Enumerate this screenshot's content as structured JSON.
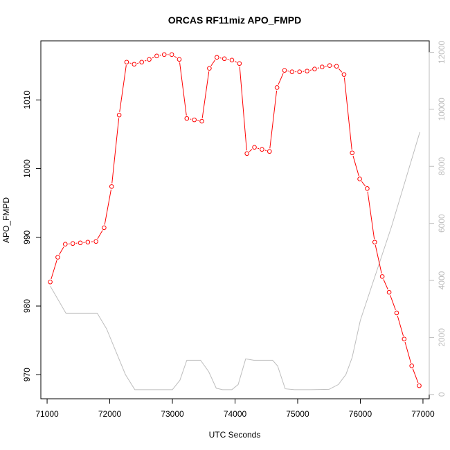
{
  "chart_data": {
    "type": "line",
    "title": "ORCAS RF11miz APO_FMPD",
    "xlabel": "UTC Seconds",
    "ylabel": "APO_FMPD",
    "xlim": [
      70900,
      77100
    ],
    "ylim": [
      966.5,
      1018.6
    ],
    "y2lim": [
      -150,
      12400
    ],
    "x_ticks": [
      71000,
      72000,
      73000,
      74000,
      75000,
      76000,
      77000
    ],
    "y_ticks": [
      970,
      980,
      990,
      1000,
      1010
    ],
    "y2_ticks": [
      0,
      2000,
      4000,
      6000,
      8000,
      10000,
      12000
    ],
    "grid": false,
    "legend": "none",
    "colors": {
      "primary": "#ff0000",
      "secondary": "#bebebe",
      "axis": "#000000",
      "right_axis": "#bdbdbd"
    },
    "series": [
      {
        "axis": "left",
        "style": "points-and-lines",
        "x": [
          71050,
          71170,
          71290,
          71410,
          71530,
          71650,
          71780,
          71910,
          72030,
          72150,
          72270,
          72390,
          72510,
          72630,
          72750,
          72870,
          72990,
          73110,
          73230,
          73350,
          73470,
          73590,
          73710,
          73830,
          73950,
          74070,
          74190,
          74310,
          74430,
          74550,
          74670,
          74790,
          74910,
          75030,
          75150,
          75270,
          75390,
          75510,
          75620,
          75740,
          75870,
          75990,
          76110,
          76230,
          76350,
          76460,
          76580,
          76700,
          76820,
          76940
        ],
        "y": [
          983.5,
          987.1,
          989.0,
          989.1,
          989.2,
          989.3,
          989.4,
          991.4,
          997.4,
          1007.8,
          1015.5,
          1015.2,
          1015.5,
          1015.9,
          1016.4,
          1016.6,
          1016.6,
          1015.9,
          1007.3,
          1007.1,
          1006.9,
          1014.6,
          1016.2,
          1016.0,
          1015.8,
          1015.3,
          1002.2,
          1003.1,
          1002.8,
          1002.5,
          1011.8,
          1014.3,
          1014.1,
          1014.1,
          1014.2,
          1014.5,
          1014.8,
          1015.0,
          1014.9,
          1013.7,
          1002.3,
          998.5,
          997.1,
          989.3,
          984.3,
          982.0,
          979.0,
          975.2,
          971.3,
          968.4
        ]
      },
      {
        "axis": "right",
        "style": "line",
        "x": [
          71050,
          71300,
          71800,
          71950,
          72100,
          72250,
          72400,
          72600,
          73000,
          73120,
          73230,
          73450,
          73580,
          73700,
          73800,
          73950,
          74050,
          74170,
          74300,
          74600,
          74680,
          74800,
          74950,
          75200,
          75500,
          75650,
          75770,
          75870,
          76000,
          76500,
          76950
        ],
        "y": [
          3800,
          2850,
          2850,
          2300,
          1500,
          700,
          170,
          170,
          170,
          500,
          1200,
          1200,
          800,
          220,
          170,
          170,
          350,
          1250,
          1200,
          1200,
          1000,
          200,
          170,
          170,
          180,
          350,
          700,
          1300,
          2600,
          5900,
          9200
        ]
      }
    ]
  }
}
